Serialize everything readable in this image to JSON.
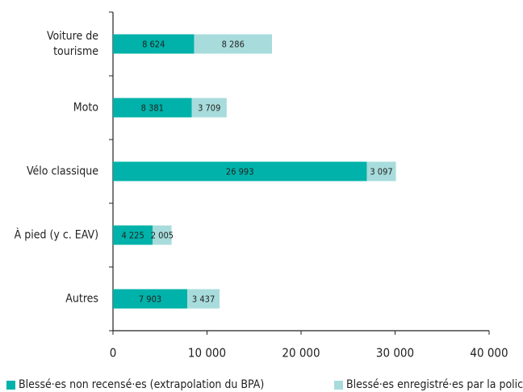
{
  "chart_data": {
    "type": "stacked-barh",
    "categories": [
      "Voiture de tourisme",
      "Moto",
      "Vélo classique",
      "À pied (y c. EAV)",
      "Autres"
    ],
    "series": [
      {
        "name": "Blessé·es non recensé·es (extrapolation du BPA)",
        "color": "#00b2a9",
        "values": [
          8624,
          8381,
          26993,
          4225,
          7903
        ],
        "value_labels": [
          "8 624",
          "8 381",
          "26 993",
          "4 225",
          "7 903"
        ]
      },
      {
        "name": "Blessé·es enregistré·es par la police",
        "color": "#a8dcdc",
        "values": [
          8286,
          3709,
          3097,
          2005,
          3437
        ],
        "value_labels": [
          "8 286",
          "3 709",
          "3 097",
          "2 005",
          "3 437"
        ]
      }
    ],
    "xlim": [
      0,
      40000
    ],
    "xticks": [
      0,
      {
        "value": 10000,
        "label": "10 000"
      },
      {
        "value": 20000,
        "label": "20 000"
      },
      {
        "value": 30000,
        "label": "30 000"
      },
      {
        "value": 40000,
        "label": "40 000"
      }
    ],
    "legend": "bottom"
  }
}
